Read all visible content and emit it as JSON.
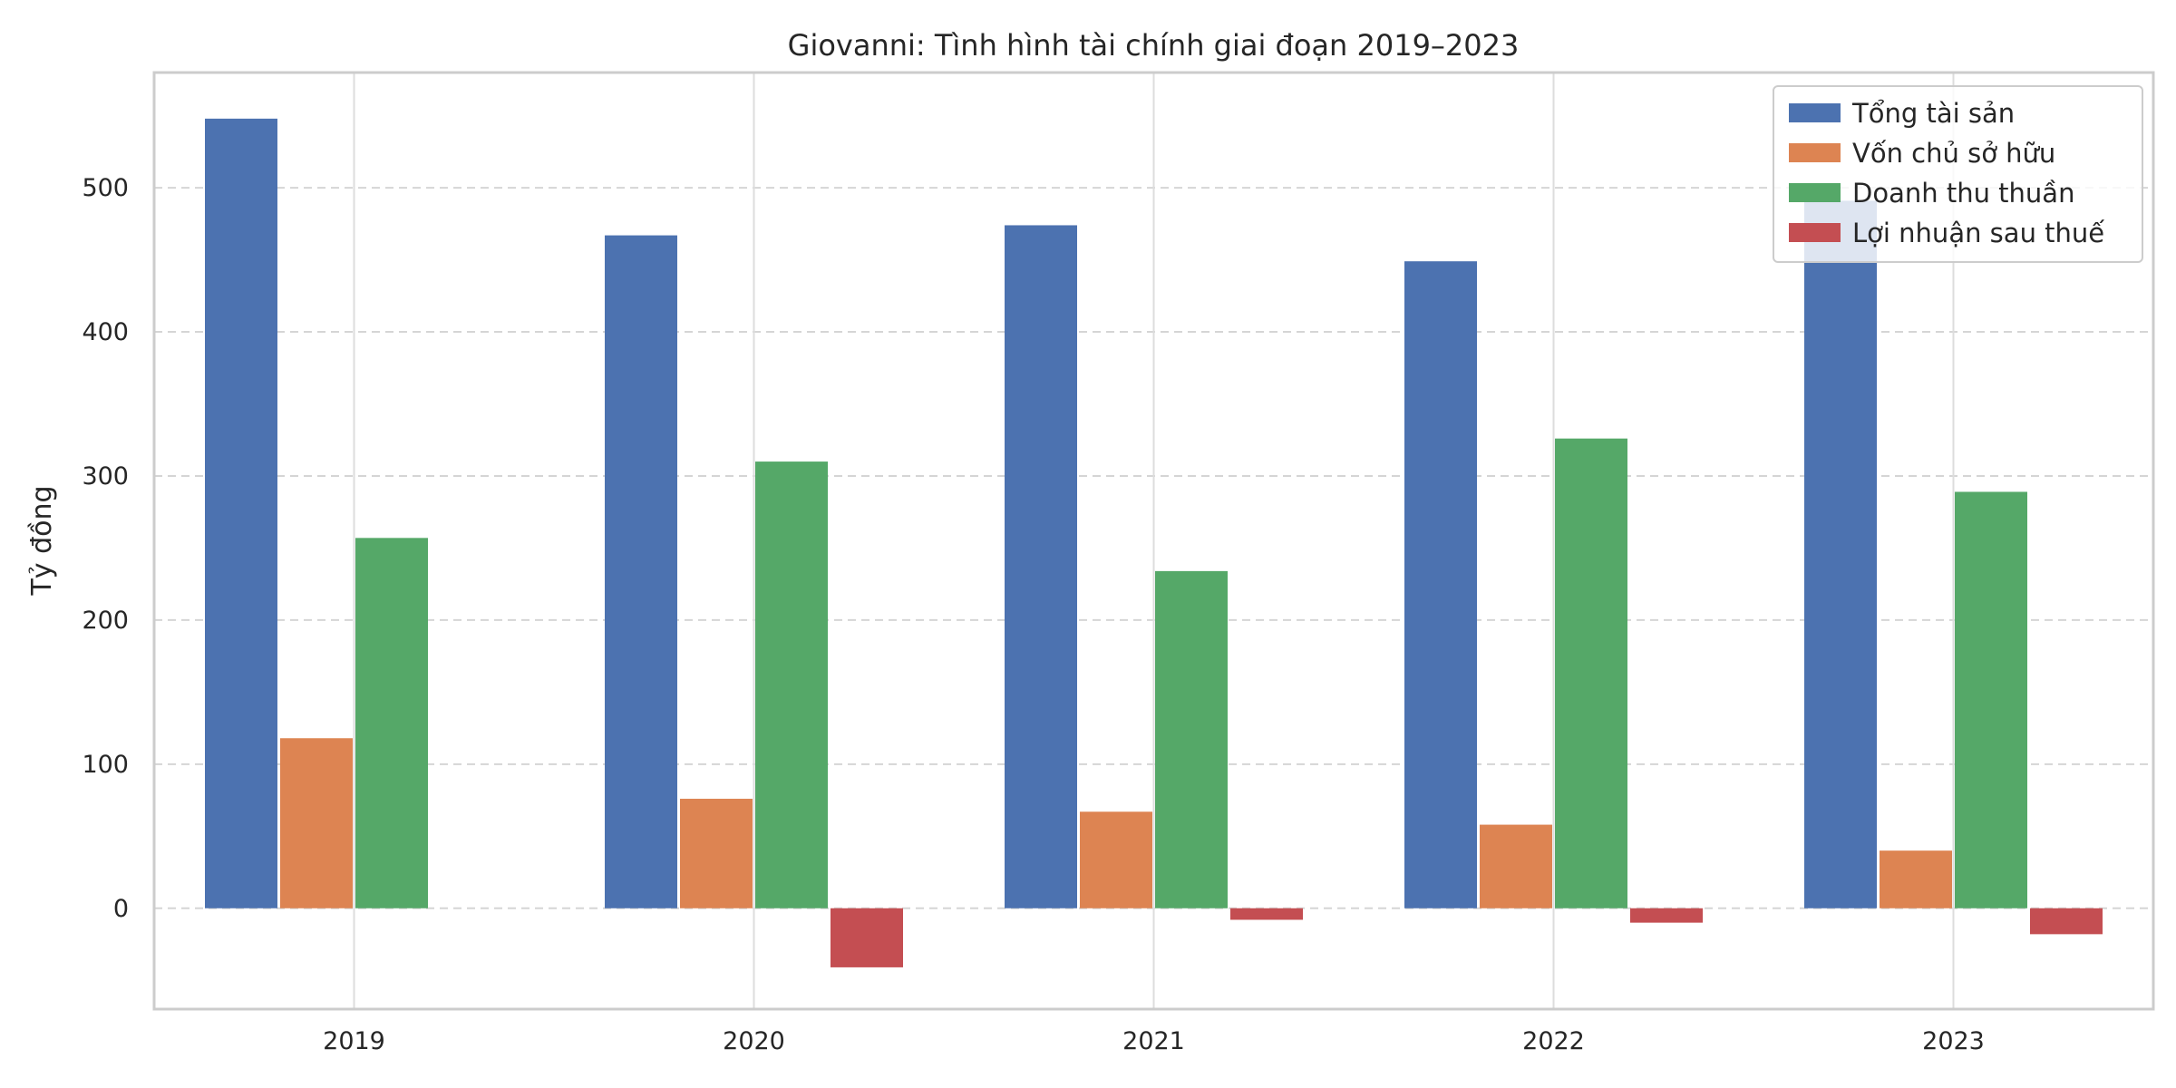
{
  "chart_data": {
    "type": "bar",
    "title": "Giovanni: Tình hình tài chính giai đoạn 2019–2023",
    "xlabel": "",
    "ylabel": "Tỷ đồng",
    "categories": [
      "2019",
      "2020",
      "2021",
      "2022",
      "2023"
    ],
    "ylim": [
      -70,
      580
    ],
    "yticks": [
      0,
      100,
      200,
      300,
      400,
      500
    ],
    "grid": true,
    "legend_position": "top-right",
    "series": [
      {
        "name": "Tổng tài sản",
        "color": "#4C72B0",
        "values": [
          548,
          467,
          474,
          449,
          491
        ]
      },
      {
        "name": "Vốn chủ sở hữu",
        "color": "#DD8452",
        "values": [
          118,
          76,
          67,
          58,
          40
        ]
      },
      {
        "name": "Doanh thu thuần",
        "color": "#55A868",
        "values": [
          257,
          310,
          234,
          326,
          289
        ]
      },
      {
        "name": "Lợi nhuận sau thuế",
        "color": "#C44E52",
        "values": [
          0,
          -41,
          -8,
          -10,
          -18
        ]
      }
    ]
  }
}
